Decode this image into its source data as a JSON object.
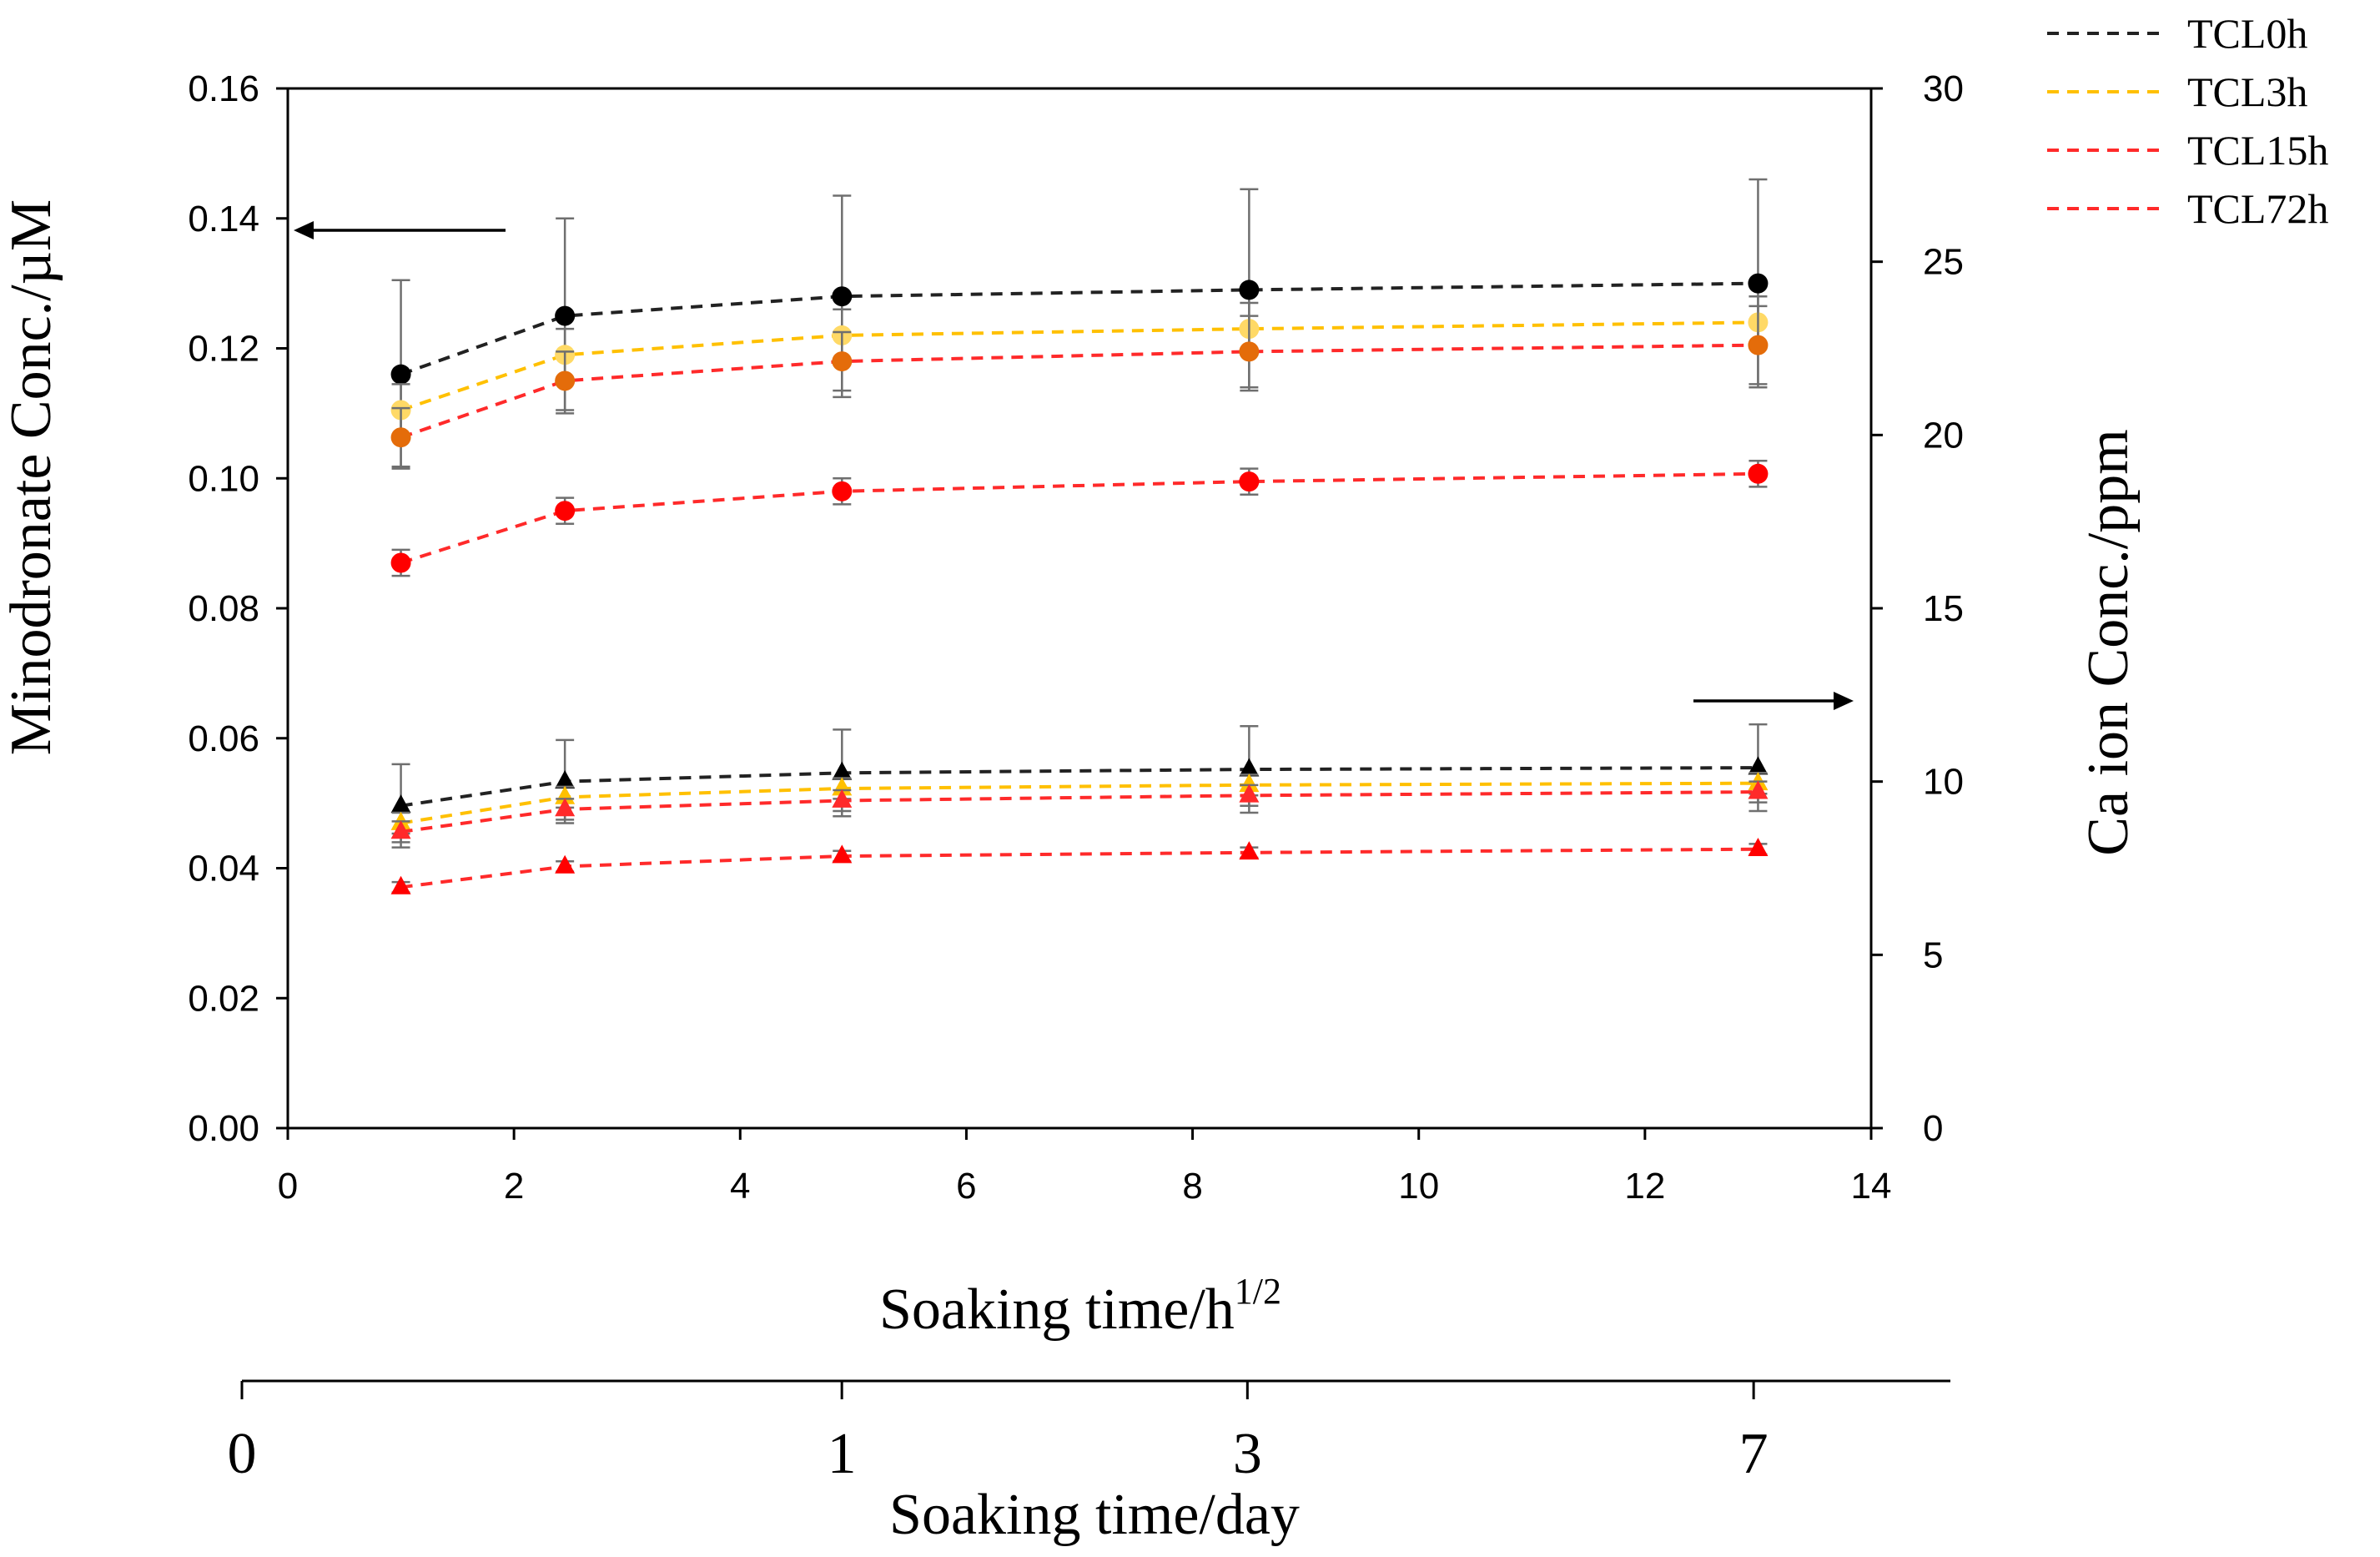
{
  "chart_data": {
    "type": "line",
    "x_axis": {
      "label_main": "Soaking time/h",
      "label_sup": "1/2",
      "range": [
        0,
        14
      ],
      "ticks": [
        0,
        2,
        4,
        6,
        8,
        10,
        12,
        14
      ]
    },
    "y_axis_left": {
      "label": "Minodronate Conc./µM",
      "range": [
        0,
        0.16
      ],
      "ticks": [
        "0.00",
        "0.02",
        "0.04",
        "0.06",
        "0.08",
        "0.10",
        "0.12",
        "0.14",
        "0.16"
      ]
    },
    "y_axis_right": {
      "label": "Ca ion Conc./ppm",
      "range": [
        0,
        30
      ],
      "ticks": [
        0,
        5,
        10,
        15,
        20,
        25,
        30
      ]
    },
    "day_axis": {
      "label": "Soaking time/day",
      "ticks": [
        {
          "label": "0",
          "sqrt_h": 0
        },
        {
          "label": "1",
          "sqrt_h": 4.899
        },
        {
          "label": "3",
          "sqrt_h": 8.485
        },
        {
          "label": "7",
          "sqrt_h": 12.961
        }
      ]
    },
    "x": [
      1,
      2.45,
      4.9,
      8.5,
      13
    ],
    "series": [
      {
        "name": "TCL0h",
        "axis": "left",
        "marker": "circle",
        "color": "#000000",
        "line_color": "#222222",
        "values": [
          0.116,
          0.125,
          0.128,
          0.129,
          0.13
        ],
        "errors": [
          0.0145,
          0.015,
          0.0155,
          0.0155,
          0.016
        ]
      },
      {
        "name": "TCL3h",
        "axis": "left",
        "marker": "circle",
        "color": "#FFD966",
        "line_color": "#FFC000",
        "values": [
          0.1105,
          0.119,
          0.122,
          0.123,
          0.124
        ],
        "errors": [
          0.004,
          0.004,
          0.004,
          0.004,
          0.004
        ]
      },
      {
        "name": "TCL15h",
        "axis": "left",
        "marker": "circle",
        "color": "#E46C0A",
        "line_color": "#FF2A2A",
        "values": [
          0.1063,
          0.115,
          0.118,
          0.1195,
          0.1205
        ],
        "errors": [
          0.0045,
          0.0045,
          0.0045,
          0.0055,
          0.006
        ]
      },
      {
        "name": "TCL72h",
        "axis": "left",
        "marker": "circle",
        "color": "#FF0000",
        "line_color": "#FF2A2A",
        "values": [
          0.087,
          0.095,
          0.098,
          0.0995,
          0.1007
        ],
        "errors": [
          0.002,
          0.002,
          0.002,
          0.002,
          0.002
        ]
      },
      {
        "name": "TCL0h",
        "axis": "right",
        "marker": "triangle",
        "color": "#000000",
        "line_color": "#222222",
        "values": [
          9.3,
          10.0,
          10.25,
          10.35,
          10.4
        ],
        "errors": [
          1.2,
          1.2,
          1.25,
          1.25,
          1.25
        ]
      },
      {
        "name": "TCL3h",
        "axis": "right",
        "marker": "triangle",
        "color": "#FFC000",
        "line_color": "#FFC000",
        "values": [
          8.8,
          9.55,
          9.8,
          9.9,
          9.95
        ],
        "errors": [
          0.3,
          0.3,
          0.3,
          0.3,
          0.3
        ]
      },
      {
        "name": "TCL15h",
        "axis": "right",
        "marker": "triangle",
        "color": "#FF2A2A",
        "line_color": "#FF2A2A",
        "values": [
          8.55,
          9.2,
          9.45,
          9.6,
          9.7
        ],
        "errors": [
          0.3,
          0.3,
          0.3,
          0.3,
          0.3
        ]
      },
      {
        "name": "TCL72h",
        "axis": "right",
        "marker": "triangle",
        "color": "#FF0000",
        "line_color": "#FF2A2A",
        "values": [
          6.95,
          7.55,
          7.85,
          7.95,
          8.05
        ],
        "errors": [
          0.15,
          0.15,
          0.15,
          0.15,
          0.15
        ]
      }
    ],
    "legend": {
      "position": "top-right",
      "entries": [
        {
          "label": "TCL0h",
          "color": "#222222"
        },
        {
          "label": "TCL3h",
          "color": "#FFC000"
        },
        {
          "label": "TCL15h",
          "color": "#FF2A2A"
        },
        {
          "label": "TCL72h",
          "color": "#FF2A2A"
        }
      ]
    },
    "annotations": [
      {
        "type": "arrow",
        "direction": "left",
        "meaning": "upper curves read on left axis"
      },
      {
        "type": "arrow",
        "direction": "right",
        "meaning": "lower curves read on right axis"
      }
    ]
  }
}
